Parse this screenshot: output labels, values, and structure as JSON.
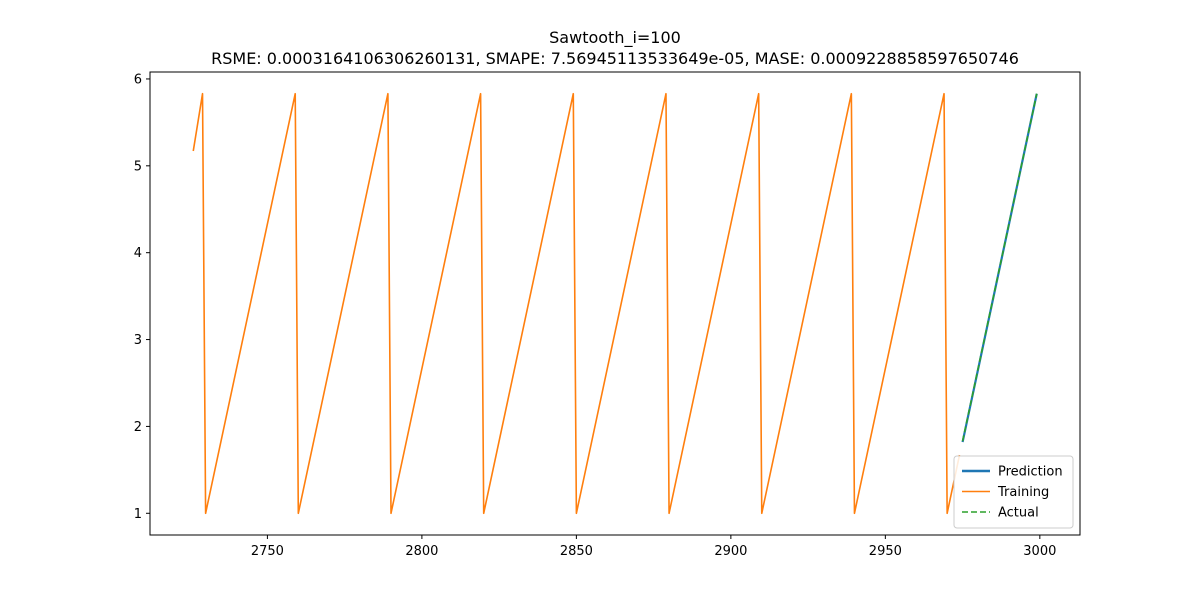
{
  "chart_data": {
    "type": "line",
    "title": "Sawtooth_i=100",
    "subtitle": "RSME: 0.0003164106306260131, SMAPE: 7.56945113533649e-05, MASE: 0.0009228858597650746",
    "xlabel": "",
    "ylabel": "",
    "xlim": [
      2712,
      3013
    ],
    "ylim": [
      0.75,
      6.08
    ],
    "x_ticks": [
      2750,
      2800,
      2850,
      2900,
      2950,
      3000
    ],
    "y_ticks": [
      1,
      2,
      3,
      4,
      5,
      6
    ],
    "grid": false,
    "legend_position": "lower right",
    "series": [
      {
        "name": "Prediction",
        "color": "#1f77b4",
        "style": "solid",
        "x": [
          2975,
          2999
        ],
        "y": [
          1.82,
          5.83
        ]
      },
      {
        "name": "Training",
        "color": "#ff7f0e",
        "style": "solid",
        "x": [
          2726,
          2729,
          2730,
          2759,
          2760,
          2789,
          2790,
          2819,
          2820,
          2849,
          2850,
          2879,
          2880,
          2909,
          2910,
          2939,
          2940,
          2969,
          2970,
          2974
        ],
        "y": [
          5.17,
          5.83,
          1.0,
          5.83,
          1.0,
          5.83,
          1.0,
          5.83,
          1.0,
          5.83,
          1.0,
          5.83,
          1.0,
          5.83,
          1.0,
          5.83,
          1.0,
          5.83,
          1.0,
          1.67
        ]
      },
      {
        "name": "Actual",
        "color": "#2ca02c",
        "style": "dashed",
        "x": [
          2975,
          2999
        ],
        "y": [
          1.83,
          5.83
        ]
      }
    ]
  }
}
